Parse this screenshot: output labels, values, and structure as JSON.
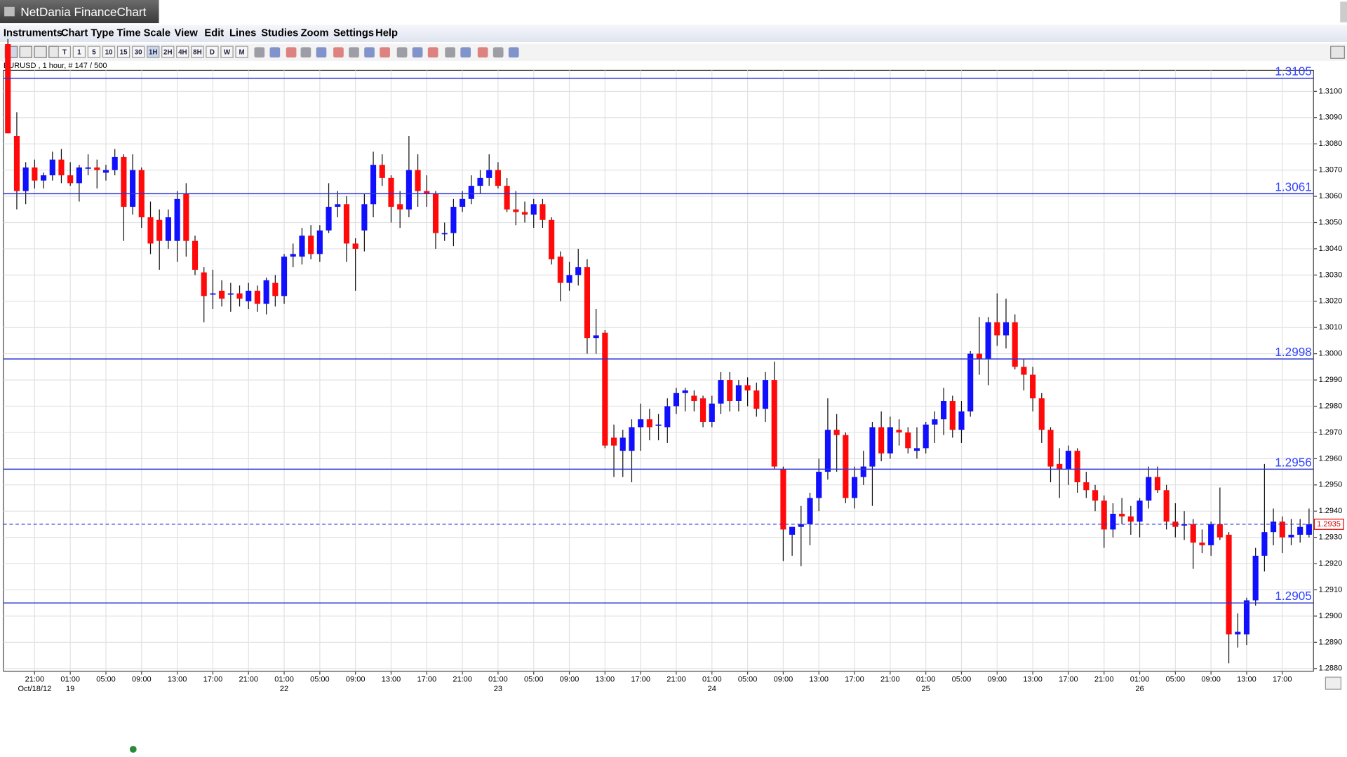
{
  "window": {
    "title": "NetDania FinanceChart"
  },
  "menu": [
    "Instruments",
    "Chart Type",
    "Time Scale",
    "View",
    "Edit",
    "Lines",
    "Studies",
    "Zoom",
    "Settings",
    "Help"
  ],
  "toolbar": [
    "T",
    "1",
    "5",
    "10",
    "15",
    "30",
    "1H",
    "2H",
    "4H",
    "8H",
    "D",
    "W",
    "M"
  ],
  "chart_data": {
    "type": "candlestick",
    "instrument_label": "EURUSD , 1 hour, # 147 / 500",
    "up_color": "#1010ff",
    "down_color": "#ff0a0a",
    "level_color": "#2a35d0",
    "grid": true,
    "open": [
      1.3118,
      1.3083,
      1.3062,
      1.3071,
      1.3066,
      1.3068,
      1.3074,
      1.3068,
      1.3065,
      1.3071,
      1.3071,
      1.3069,
      1.307,
      1.3075,
      1.3056,
      1.307,
      1.3052,
      1.3051,
      1.3043,
      1.3043,
      1.3061,
      1.3043,
      1.3031,
      1.3023,
      1.3024,
      1.3023,
      1.3023,
      1.302,
      1.3024,
      1.3019,
      1.3027,
      1.3022,
      1.3037,
      1.3037,
      1.3045,
      1.3038,
      1.3047,
      1.3056,
      1.3057,
      1.3042,
      1.3047,
      1.3057,
      1.3072,
      1.3067,
      1.3057,
      1.3055,
      1.307,
      1.3062,
      1.3061,
      1.3046,
      1.3046,
      1.3056,
      1.3059,
      1.3064,
      1.3067,
      1.307,
      1.3064,
      1.3055,
      1.3054,
      1.3053,
      1.3057,
      1.3051,
      1.3037,
      1.3027,
      1.303,
      1.3033,
      1.3006,
      1.3008,
      1.2968,
      1.2963,
      1.2963,
      1.2972,
      1.2975,
      1.2973,
      1.2972,
      1.298,
      1.2985,
      1.2984,
      1.2983,
      1.2974,
      1.2981,
      1.299,
      1.2982,
      1.2988,
      1.2986,
      1.2979,
      1.299,
      1.2956,
      1.2931,
      1.2934,
      1.2935,
      1.2945,
      1.2955,
      1.2971,
      1.2969,
      1.2945,
      1.2953,
      1.2957,
      1.2972,
      1.2962,
      1.2971,
      1.297,
      1.2963,
      1.2964,
      1.2973,
      1.2975,
      1.2982,
      1.2971,
      1.2978,
      1.3,
      1.2998,
      1.3012,
      1.3007,
      1.3012,
      1.2995,
      1.2992,
      1.2983,
      1.2971,
      1.2958,
      1.2956,
      1.2963,
      1.2951,
      1.2948,
      1.2944,
      1.2933,
      1.2939,
      1.2938,
      1.2936,
      1.2944,
      1.2953,
      1.2948,
      1.2936,
      1.2935,
      1.2935,
      1.2928,
      1.2927,
      1.2935,
      1.2931,
      1.2893,
      1.2893,
      1.2906,
      1.2923,
      1.2932,
      1.2936,
      1.293,
      1.2931,
      1.2931
    ],
    "high": [
      1.312,
      1.3092,
      1.3073,
      1.3074,
      1.3069,
      1.3077,
      1.3078,
      1.3073,
      1.3072,
      1.3076,
      1.3074,
      1.3072,
      1.3078,
      1.3076,
      1.3076,
      1.3071,
      1.3058,
      1.3055,
      1.3055,
      1.3062,
      1.3065,
      1.3045,
      1.3033,
      1.3032,
      1.3028,
      1.3027,
      1.3026,
      1.3027,
      1.3026,
      1.3029,
      1.303,
      1.3038,
      1.3042,
      1.3048,
      1.3049,
      1.3049,
      1.3065,
      1.3062,
      1.306,
      1.3044,
      1.3061,
      1.3077,
      1.3076,
      1.3068,
      1.3062,
      1.3083,
      1.3076,
      1.3068,
      1.3062,
      1.305,
      1.3059,
      1.3062,
      1.3068,
      1.307,
      1.3076,
      1.3073,
      1.3067,
      1.3062,
      1.3058,
      1.3059,
      1.3059,
      1.3052,
      1.3039,
      1.3035,
      1.304,
      1.3036,
      1.3017,
      1.3009,
      1.2973,
      1.2971,
      1.2975,
      1.2981,
      1.2979,
      1.2977,
      1.2983,
      1.2987,
      1.2987,
      1.2986,
      1.2984,
      1.2984,
      1.2993,
      1.2993,
      1.299,
      1.2991,
      1.2989,
      1.2993,
      1.2997,
      1.2957,
      1.2934,
      1.2942,
      1.2947,
      1.296,
      1.2983,
      1.2977,
      1.297,
      1.2957,
      1.2963,
      1.2974,
      1.2978,
      1.2976,
      1.2975,
      1.2972,
      1.2972,
      1.2974,
      1.2978,
      1.2987,
      1.2984,
      1.2982,
      1.3001,
      1.3014,
      1.3014,
      1.3023,
      1.3021,
      1.3015,
      1.2998,
      1.2995,
      1.2985,
      1.2972,
      1.2964,
      1.2965,
      1.2964,
      1.2955,
      1.295,
      1.2946,
      1.2943,
      1.2945,
      1.2942,
      1.2945,
      1.2957,
      1.2957,
      1.295,
      1.2943,
      1.294,
      1.2937,
      1.2933,
      1.2936,
      1.2949,
      1.2932,
      1.2901,
      1.2907,
      1.2926,
      1.2958,
      1.2941,
      1.2938,
      1.2937,
      1.2937,
      1.2941
    ],
    "low": [
      1.3084,
      1.3055,
      1.3057,
      1.3063,
      1.3063,
      1.3066,
      1.3065,
      1.3064,
      1.3058,
      1.3068,
      1.3063,
      1.3066,
      1.3068,
      1.3043,
      1.3053,
      1.3048,
      1.3038,
      1.3032,
      1.304,
      1.3035,
      1.3037,
      1.303,
      1.3012,
      1.3017,
      1.3018,
      1.3016,
      1.3018,
      1.3017,
      1.3016,
      1.3015,
      1.3018,
      1.3019,
      1.3033,
      1.3034,
      1.3036,
      1.3035,
      1.3046,
      1.3052,
      1.3035,
      1.3024,
      1.3039,
      1.3052,
      1.3064,
      1.305,
      1.3048,
      1.3052,
      1.3056,
      1.3056,
      1.304,
      1.3043,
      1.3041,
      1.3054,
      1.3057,
      1.3061,
      1.3064,
      1.3063,
      1.3054,
      1.3049,
      1.305,
      1.3048,
      1.3048,
      1.3034,
      1.302,
      1.3024,
      1.3026,
      1.3,
      1.3,
      1.2964,
      1.2953,
      1.2953,
      1.2951,
      1.2963,
      1.2967,
      1.2967,
      1.2966,
      1.2977,
      1.2978,
      1.2978,
      1.2972,
      1.2972,
      1.2977,
      1.2978,
      1.2978,
      1.298,
      1.2976,
      1.2974,
      1.2956,
      1.2921,
      1.2923,
      1.2919,
      1.2927,
      1.294,
      1.2952,
      1.2955,
      1.2943,
      1.2941,
      1.295,
      1.2942,
      1.2959,
      1.296,
      1.2965,
      1.2962,
      1.296,
      1.2962,
      1.2966,
      1.2969,
      1.2968,
      1.2966,
      1.2976,
      1.2992,
      1.2988,
      1.3003,
      1.3002,
      1.2994,
      1.2986,
      1.2978,
      1.2966,
      1.2951,
      1.2945,
      1.295,
      1.2947,
      1.2945,
      1.294,
      1.2926,
      1.293,
      1.2935,
      1.2931,
      1.293,
      1.2941,
      1.2947,
      1.2933,
      1.293,
      1.2929,
      1.2918,
      1.2924,
      1.2923,
      1.2929,
      1.2882,
      1.2888,
      1.2889,
      1.2904,
      1.2917,
      1.2927,
      1.2924,
      1.2927,
      1.2928,
      1.293
    ],
    "close": [
      1.3084,
      1.3062,
      1.3071,
      1.3066,
      1.3068,
      1.3074,
      1.3068,
      1.3065,
      1.3071,
      1.3071,
      1.307,
      1.307,
      1.3075,
      1.3056,
      1.307,
      1.3052,
      1.3042,
      1.3043,
      1.3052,
      1.3059,
      1.3043,
      1.3032,
      1.3022,
      1.3023,
      1.3021,
      1.3023,
      1.3021,
      1.3024,
      1.3019,
      1.3028,
      1.3022,
      1.3037,
      1.3038,
      1.3045,
      1.3038,
      1.3047,
      1.3056,
      1.3057,
      1.3042,
      1.304,
      1.3057,
      1.3072,
      1.3067,
      1.3056,
      1.3055,
      1.307,
      1.3062,
      1.3061,
      1.3046,
      1.3046,
      1.3056,
      1.3059,
      1.3064,
      1.3067,
      1.307,
      1.3064,
      1.3055,
      1.3054,
      1.3053,
      1.3057,
      1.3051,
      1.3036,
      1.3027,
      1.303,
      1.3033,
      1.3006,
      1.3007,
      1.2965,
      1.2965,
      1.2968,
      1.2972,
      1.2975,
      1.2972,
      1.2973,
      1.298,
      1.2985,
      1.2986,
      1.2982,
      1.2974,
      1.2981,
      1.299,
      1.2982,
      1.2988,
      1.2986,
      1.2979,
      1.299,
      1.2957,
      1.2933,
      1.2934,
      1.2935,
      1.2945,
      1.2955,
      1.2971,
      1.2969,
      1.2945,
      1.2953,
      1.2957,
      1.2972,
      1.2962,
      1.2972,
      1.297,
      1.2964,
      1.2964,
      1.2973,
      1.2975,
      1.2982,
      1.2971,
      1.2978,
      1.3,
      1.2998,
      1.3012,
      1.3007,
      1.3012,
      1.2995,
      1.2992,
      1.2983,
      1.2971,
      1.2957,
      1.2956,
      1.2963,
      1.2951,
      1.2948,
      1.2944,
      1.2933,
      1.2939,
      1.2938,
      1.2936,
      1.2944,
      1.2953,
      1.2948,
      1.2936,
      1.2934,
      1.2935,
      1.2928,
      1.2927,
      1.2935,
      1.293,
      1.2893,
      1.2894,
      1.2906,
      1.2923,
      1.2932,
      1.2936,
      1.293,
      1.2931,
      1.2934,
      1.2935
    ],
    "ylim": [
      1.2879,
      1.3108
    ],
    "yticks": [
      {
        "value": 1.288,
        "label": "1.2880"
      },
      {
        "value": 1.289,
        "label": "1.2890"
      },
      {
        "value": 1.29,
        "label": "1.2900"
      },
      {
        "value": 1.291,
        "label": "1.2910"
      },
      {
        "value": 1.292,
        "label": "1.2920"
      },
      {
        "value": 1.293,
        "label": "1.2930"
      },
      {
        "value": 1.294,
        "label": "1.2940"
      },
      {
        "value": 1.295,
        "label": "1.2950"
      },
      {
        "value": 1.296,
        "label": "1.2960"
      },
      {
        "value": 1.297,
        "label": "1.2970"
      },
      {
        "value": 1.298,
        "label": "1.2980"
      },
      {
        "value": 1.299,
        "label": "1.2990"
      },
      {
        "value": 1.3,
        "label": "1.3000"
      },
      {
        "value": 1.301,
        "label": "1.3010"
      },
      {
        "value": 1.302,
        "label": "1.3020"
      },
      {
        "value": 1.303,
        "label": "1.3030"
      },
      {
        "value": 1.304,
        "label": "1.3040"
      },
      {
        "value": 1.305,
        "label": "1.3050"
      },
      {
        "value": 1.306,
        "label": "1.3060"
      },
      {
        "value": 1.307,
        "label": "1.3070"
      },
      {
        "value": 1.308,
        "label": "1.3080"
      },
      {
        "value": 1.309,
        "label": "1.3090"
      },
      {
        "value": 1.31,
        "label": "1.3100"
      }
    ],
    "xticks": [
      {
        "value": 3,
        "label": "21:00"
      },
      {
        "value": 7,
        "label": "01:00"
      },
      {
        "value": 11,
        "label": "05:00"
      },
      {
        "value": 15,
        "label": "09:00"
      },
      {
        "value": 19,
        "label": "13:00"
      },
      {
        "value": 23,
        "label": "17:00"
      },
      {
        "value": 27,
        "label": "21:00"
      },
      {
        "value": 31,
        "label": "01:00"
      },
      {
        "value": 35,
        "label": "05:00"
      },
      {
        "value": 39,
        "label": "09:00"
      },
      {
        "value": 43,
        "label": "13:00"
      },
      {
        "value": 47,
        "label": "17:00"
      },
      {
        "value": 51,
        "label": "21:00"
      },
      {
        "value": 55,
        "label": "01:00"
      },
      {
        "value": 59,
        "label": "05:00"
      },
      {
        "value": 63,
        "label": "09:00"
      },
      {
        "value": 67,
        "label": "13:00"
      },
      {
        "value": 71,
        "label": "17:00"
      },
      {
        "value": 75,
        "label": "21:00"
      },
      {
        "value": 79,
        "label": "01:00"
      },
      {
        "value": 83,
        "label": "05:00"
      },
      {
        "value": 87,
        "label": "09:00"
      },
      {
        "value": 91,
        "label": "13:00"
      },
      {
        "value": 95,
        "label": "17:00"
      },
      {
        "value": 99,
        "label": "21:00"
      },
      {
        "value": 103,
        "label": "01:00"
      },
      {
        "value": 107,
        "label": "05:00"
      },
      {
        "value": 111,
        "label": "09:00"
      },
      {
        "value": 115,
        "label": "13:00"
      },
      {
        "value": 119,
        "label": "17:00"
      },
      {
        "value": 123,
        "label": "21:00"
      },
      {
        "value": 127,
        "label": "01:00"
      },
      {
        "value": 131,
        "label": "05:00"
      },
      {
        "value": 135,
        "label": "09:00"
      },
      {
        "value": 139,
        "label": "13:00"
      },
      {
        "value": 143,
        "label": "17:00"
      }
    ],
    "date_labels": [
      {
        "value": 3,
        "label": "Oct/18/12"
      },
      {
        "value": 7,
        "label": "19"
      },
      {
        "value": 31,
        "label": "22"
      },
      {
        "value": 55,
        "label": "23"
      },
      {
        "value": 79,
        "label": "24"
      },
      {
        "value": 103,
        "label": "25"
      },
      {
        "value": 127,
        "label": "26"
      }
    ],
    "levels": [
      1.3105,
      1.3061,
      1.2998,
      1.2956,
      1.2905
    ],
    "last_price": 1.2935
  }
}
